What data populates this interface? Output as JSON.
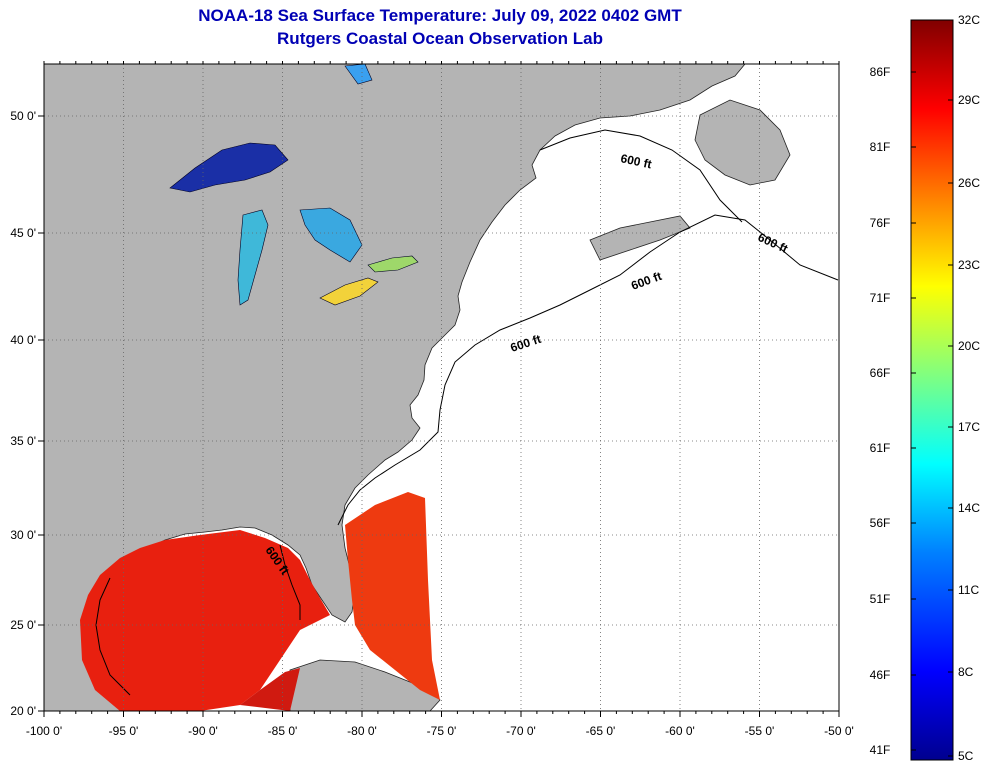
{
  "title": {
    "line1": "NOAA-18 Sea Surface Temperature:  July 09, 2022 0402 GMT",
    "line2": "Rutgers Coastal Ocean Observation Lab"
  },
  "map": {
    "longitude_labels": [
      "-100 0'",
      "-95 0'",
      "-90 0'",
      "-85 0'",
      "-80 0'",
      "-75 0'",
      "-70 0'",
      "-65 0'",
      "-60 0'",
      "-55 0'",
      "-50 0'"
    ],
    "longitude_values": [
      -100,
      -95,
      -90,
      -85,
      -80,
      -75,
      -70,
      -65,
      -60,
      -55,
      -50
    ],
    "latitude_labels": [
      "50 0'",
      "45 0'",
      "40 0'",
      "35 0'",
      "30 0'",
      "25 0'",
      "20 0'"
    ],
    "latitude_values": [
      50,
      45,
      40,
      35,
      30,
      25,
      20
    ],
    "depth_contour_labels": [
      "600 ft",
      "600 ft",
      "600 ft",
      "600 ft",
      "600 ft"
    ],
    "colors": {
      "land": "#b4b4b4",
      "ocean_no_data": "#ffffff",
      "title": "#0000b4"
    }
  },
  "colorbar": {
    "fahrenheit_labels": [
      "86F",
      "81F",
      "76F",
      "71F",
      "66F",
      "61F",
      "56F",
      "51F",
      "46F",
      "41F"
    ],
    "celsius_labels": [
      "32C",
      "29C",
      "26C",
      "23C",
      "20C",
      "17C",
      "14C",
      "11C",
      "8C",
      "5C"
    ],
    "range_celsius": [
      5,
      32
    ],
    "colors": [
      "#00008f",
      "#0000ff",
      "#0080ff",
      "#00ffff",
      "#80ff80",
      "#ffff00",
      "#ff8000",
      "#ff0000",
      "#800000"
    ]
  }
}
